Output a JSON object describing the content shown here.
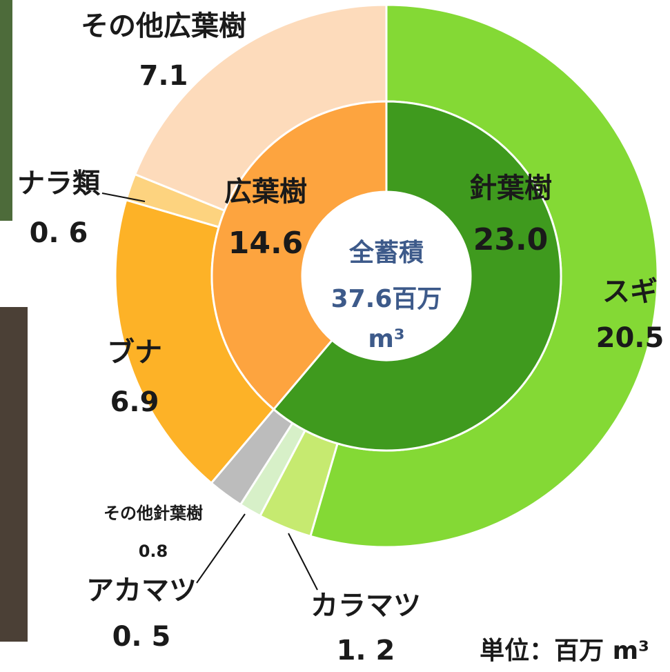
{
  "chart_data": {
    "type": "nested-donut",
    "inner": {
      "categories": [
        "針葉樹",
        "広葉樹"
      ],
      "values": [
        23.0,
        14.6
      ],
      "value_labels": [
        "23.0",
        "14.6"
      ],
      "colors": [
        "#3f9a1e",
        "#fda43f"
      ]
    },
    "outer": {
      "categories": [
        "スギ",
        "カラマツ",
        "アカマツ",
        "その他針葉樹",
        "ブナ",
        "ナラ類",
        "その他広葉樹"
      ],
      "values": [
        20.5,
        1.2,
        0.5,
        0.8,
        6.9,
        0.6,
        7.1
      ],
      "value_labels": [
        "20.5",
        "1. 2",
        "0. 5",
        "0.8",
        "6.9",
        "0. 6",
        "7.1"
      ],
      "colors": [
        "#84d935",
        "#c6ea70",
        "#d7f0c8",
        "#bcbcbc",
        "#fdb227",
        "#fdd37f",
        "#fddbbb"
      ]
    },
    "center_title": "全蓄積",
    "center_value": "37.6百万",
    "center_unit": "m³",
    "unit_note": "単位：百万 m³"
  }
}
